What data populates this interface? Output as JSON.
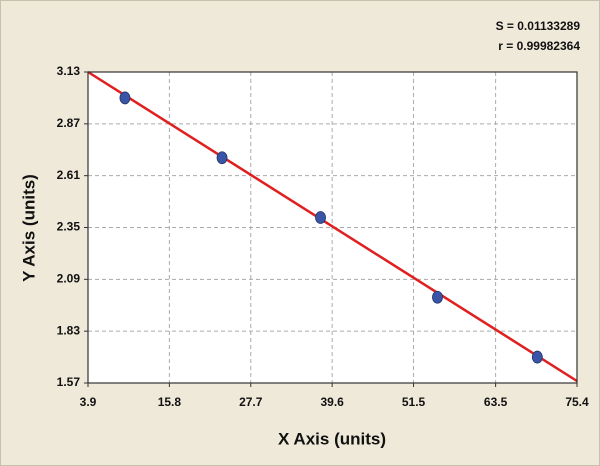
{
  "chart_data": {
    "type": "scatter",
    "x_label": "X Axis (units)",
    "y_label": "Y Axis (units)",
    "annotations": [
      "S = 0.01133289",
      "r = 0.99982364"
    ],
    "xlim": [
      3.9,
      75.4
    ],
    "xticks": [
      3.9,
      15.8,
      27.7,
      39.6,
      51.5,
      63.5,
      75.4
    ],
    "ylim": [
      1.57,
      3.13
    ],
    "yticks": [
      1.57,
      1.83,
      2.09,
      2.35,
      2.61,
      2.87,
      3.13
    ],
    "grid": true,
    "series": [
      {
        "type": "scatter",
        "color": "#3a55a8",
        "x": [
          9.3,
          23.5,
          37.9,
          55.0,
          69.6
        ],
        "values": [
          3.0,
          2.7,
          2.4,
          2.0,
          1.7
        ]
      },
      {
        "type": "line",
        "color": "#e02020",
        "x": [
          3.9,
          75.4
        ],
        "values": [
          3.13,
          1.58
        ]
      }
    ]
  }
}
